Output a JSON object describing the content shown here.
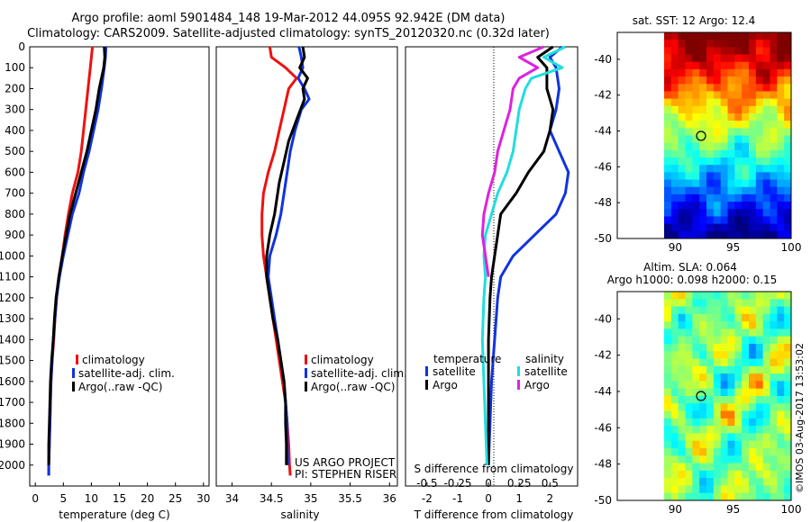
{
  "header": {
    "line1": "Argo profile: aoml 5901484_148 19-Mar-2012 44.095S 92.942E (DM data)",
    "line2": "Climatology: CARS2009. Satellite-adjusted climatology: synTS_20120320.nc (0.32d later)"
  },
  "sst_panel": {
    "title": "sat. SST: 12 Argo: 12.4"
  },
  "sla_panel": {
    "title1": "Altim. SLA: 0.064",
    "title2": "Argo h1000: 0.098 h2000: 0.15"
  },
  "credit": "©IMOS 03-Aug-2017 13:53:02",
  "project_note": {
    "line1": "US ARGO PROJECT",
    "line2": "PI: STEPHEN RISER"
  },
  "colors": {
    "climatology": "#ee1111",
    "satellite": "#1133dd",
    "argo": "#000000",
    "s_satellite": "#22dddd",
    "s_argo": "#dd22dd"
  },
  "legend": {
    "climatology": "climatology",
    "satellite_adj": "satellite-adj. clim.",
    "argo_raw": "Argo(..raw -QC)"
  },
  "diff_legend": {
    "temperature": "temperature",
    "salinity": "salinity",
    "satellite": "satellite",
    "argo": "Argo"
  },
  "chart_data": [
    {
      "type": "line",
      "xlabel": "temperature (deg C)",
      "ylabel": "",
      "xlim": [
        -1,
        31
      ],
      "ylim": [
        2100,
        0
      ],
      "xticks": [
        0,
        5,
        10,
        15,
        20,
        25,
        30
      ],
      "yticks": [
        0,
        100,
        200,
        300,
        400,
        500,
        600,
        700,
        800,
        900,
        1000,
        1100,
        1200,
        1300,
        1400,
        1500,
        1600,
        1700,
        1800,
        1900,
        2000
      ],
      "series": [
        {
          "name": "climatology",
          "color": "#ee1111",
          "points": [
            [
              10.2,
              0
            ],
            [
              10.0,
              50
            ],
            [
              9.8,
              100
            ],
            [
              9.4,
              200
            ],
            [
              9.0,
              300
            ],
            [
              8.6,
              400
            ],
            [
              8.2,
              500
            ],
            [
              7.6,
              600
            ],
            [
              6.6,
              700
            ],
            [
              5.9,
              800
            ],
            [
              5.3,
              900
            ],
            [
              4.8,
              1000
            ],
            [
              4.2,
              1100
            ],
            [
              3.8,
              1200
            ],
            [
              3.5,
              1300
            ],
            [
              3.3,
              1400
            ],
            [
              3.0,
              1500
            ],
            [
              2.8,
              1600
            ],
            [
              2.7,
              1700
            ],
            [
              2.6,
              1800
            ],
            [
              2.5,
              1900
            ],
            [
              2.4,
              2000
            ],
            [
              2.4,
              2050
            ]
          ]
        },
        {
          "name": "satellite-adj. clim.",
          "color": "#1133dd",
          "points": [
            [
              12.6,
              0
            ],
            [
              12.5,
              50
            ],
            [
              12.3,
              100
            ],
            [
              11.8,
              200
            ],
            [
              11.2,
              300
            ],
            [
              10.4,
              400
            ],
            [
              9.6,
              500
            ],
            [
              8.6,
              600
            ],
            [
              7.8,
              700
            ],
            [
              6.6,
              800
            ],
            [
              5.8,
              900
            ],
            [
              5.0,
              1000
            ],
            [
              4.3,
              1100
            ],
            [
              3.8,
              1200
            ],
            [
              3.5,
              1300
            ],
            [
              3.2,
              1400
            ],
            [
              3.0,
              1500
            ],
            [
              2.8,
              1600
            ],
            [
              2.7,
              1700
            ],
            [
              2.6,
              1800
            ],
            [
              2.5,
              1900
            ],
            [
              2.4,
              2000
            ],
            [
              2.4,
              2050
            ]
          ]
        },
        {
          "name": "Argo(..raw -QC)",
          "color": "#000000",
          "points": [
            [
              12.3,
              0
            ],
            [
              12.4,
              50
            ],
            [
              12.2,
              100
            ],
            [
              11.4,
              200
            ],
            [
              10.8,
              300
            ],
            [
              10.0,
              400
            ],
            [
              9.2,
              500
            ],
            [
              8.2,
              600
            ],
            [
              7.2,
              700
            ],
            [
              6.2,
              800
            ],
            [
              5.5,
              900
            ],
            [
              4.8,
              1000
            ],
            [
              4.2,
              1100
            ],
            [
              3.7,
              1200
            ],
            [
              3.4,
              1300
            ],
            [
              3.2,
              1400
            ],
            [
              2.9,
              1500
            ],
            [
              2.7,
              1600
            ],
            [
              2.6,
              1700
            ],
            [
              2.5,
              1800
            ],
            [
              2.4,
              1900
            ],
            [
              2.4,
              2000
            ]
          ]
        }
      ]
    },
    {
      "type": "line",
      "xlabel": "salinity",
      "ylabel": "",
      "xlim": [
        33.8,
        36.1
      ],
      "ylim": [
        2100,
        0
      ],
      "xticks": [
        34,
        34.5,
        35,
        35.5,
        36
      ],
      "series": [
        {
          "name": "climatology",
          "color": "#ee1111",
          "points": [
            [
              34.48,
              0
            ],
            [
              34.5,
              50
            ],
            [
              34.68,
              100
            ],
            [
              34.82,
              150
            ],
            [
              34.72,
              200
            ],
            [
              34.66,
              300
            ],
            [
              34.6,
              400
            ],
            [
              34.54,
              500
            ],
            [
              34.46,
              600
            ],
            [
              34.4,
              700
            ],
            [
              34.38,
              800
            ],
            [
              34.38,
              900
            ],
            [
              34.4,
              1000
            ],
            [
              34.44,
              1100
            ],
            [
              34.48,
              1200
            ],
            [
              34.52,
              1300
            ],
            [
              34.56,
              1400
            ],
            [
              34.6,
              1500
            ],
            [
              34.64,
              1600
            ],
            [
              34.68,
              1700
            ],
            [
              34.7,
              1800
            ],
            [
              34.72,
              1900
            ],
            [
              34.73,
              2000
            ],
            [
              34.74,
              2050
            ]
          ]
        },
        {
          "name": "satellite-adj. clim.",
          "color": "#1133dd",
          "points": [
            [
              34.85,
              0
            ],
            [
              34.88,
              50
            ],
            [
              34.9,
              100
            ],
            [
              34.84,
              150
            ],
            [
              34.92,
              200
            ],
            [
              34.98,
              250
            ],
            [
              34.88,
              300
            ],
            [
              34.8,
              400
            ],
            [
              34.74,
              500
            ],
            [
              34.7,
              600
            ],
            [
              34.66,
              700
            ],
            [
              34.62,
              800
            ],
            [
              34.56,
              900
            ],
            [
              34.48,
              1000
            ],
            [
              34.46,
              1100
            ],
            [
              34.5,
              1200
            ],
            [
              34.54,
              1300
            ],
            [
              34.58,
              1400
            ],
            [
              34.62,
              1500
            ],
            [
              34.66,
              1600
            ],
            [
              34.68,
              1700
            ],
            [
              34.7,
              1800
            ],
            [
              34.7,
              1900
            ],
            [
              34.71,
              2000
            ]
          ]
        },
        {
          "name": "Argo(..raw -QC)",
          "color": "#000000",
          "points": [
            [
              34.9,
              0
            ],
            [
              34.92,
              50
            ],
            [
              34.86,
              100
            ],
            [
              34.96,
              150
            ],
            [
              34.9,
              200
            ],
            [
              34.92,
              250
            ],
            [
              34.82,
              350
            ],
            [
              34.72,
              450
            ],
            [
              34.66,
              550
            ],
            [
              34.6,
              650
            ],
            [
              34.54,
              800
            ],
            [
              34.48,
              900
            ],
            [
              34.44,
              1000
            ],
            [
              34.44,
              1100
            ],
            [
              34.48,
              1200
            ],
            [
              34.52,
              1300
            ],
            [
              34.58,
              1400
            ],
            [
              34.62,
              1500
            ],
            [
              34.66,
              1600
            ],
            [
              34.68,
              1700
            ],
            [
              34.68,
              1800
            ],
            [
              34.69,
              1900
            ],
            [
              34.69,
              2000
            ]
          ]
        }
      ]
    },
    {
      "type": "line",
      "xlabel": "T difference from climatology",
      "ylabel": "",
      "top_label": "S difference from climatology",
      "xlim": [
        -2.7,
        2.9
      ],
      "ylim": [
        2100,
        0
      ],
      "xticks": [
        -2,
        -1,
        0,
        1,
        2
      ],
      "s_ticks": [
        "-0.5",
        "-0.25",
        "0",
        "0.25",
        "0.5"
      ],
      "series": [
        {
          "name": "temperature satellite",
          "color": "#1133dd",
          "points": [
            [
              2.4,
              0
            ],
            [
              2.0,
              50
            ],
            [
              2.2,
              100
            ],
            [
              2.3,
              200
            ],
            [
              2.2,
              300
            ],
            [
              2.0,
              400
            ],
            [
              2.3,
              500
            ],
            [
              2.6,
              600
            ],
            [
              2.5,
              700
            ],
            [
              2.2,
              800
            ],
            [
              1.5,
              900
            ],
            [
              0.8,
              1000
            ],
            [
              0.4,
              1100
            ],
            [
              0.3,
              1200
            ],
            [
              0.2,
              1400
            ],
            [
              0.1,
              1600
            ],
            [
              0.05,
              1800
            ],
            [
              0.0,
              2000
            ]
          ]
        },
        {
          "name": "temperature Argo",
          "color": "#000000",
          "points": [
            [
              2.1,
              0
            ],
            [
              1.6,
              50
            ],
            [
              1.9,
              100
            ],
            [
              1.9,
              200
            ],
            [
              2.1,
              300
            ],
            [
              2.0,
              400
            ],
            [
              1.8,
              500
            ],
            [
              1.3,
              600
            ],
            [
              0.9,
              700
            ],
            [
              0.4,
              800
            ],
            [
              0.3,
              900
            ],
            [
              0.2,
              1000
            ],
            [
              0.1,
              1100
            ],
            [
              0.05,
              1200
            ],
            [
              0.0,
              1400
            ],
            [
              0.0,
              1700
            ],
            [
              0.0,
              2000
            ]
          ]
        },
        {
          "name": "salinity satellite",
          "color": "#22dddd",
          "points": [
            [
              2.5,
              0
            ],
            [
              1.8,
              50
            ],
            [
              2.4,
              100
            ],
            [
              1.4,
              150
            ],
            [
              1.2,
              200
            ],
            [
              1.0,
              300
            ],
            [
              0.9,
              400
            ],
            [
              0.8,
              500
            ],
            [
              0.6,
              600
            ],
            [
              0.3,
              700
            ],
            [
              0.1,
              800
            ],
            [
              -0.1,
              900
            ],
            [
              -0.15,
              1000
            ],
            [
              -0.1,
              1100
            ],
            [
              -0.15,
              1200
            ],
            [
              -0.2,
              1400
            ],
            [
              -0.15,
              1600
            ],
            [
              -0.1,
              1800
            ],
            [
              -0.05,
              2000
            ]
          ]
        },
        {
          "name": "salinity Argo",
          "color": "#dd22dd",
          "points": [
            [
              1.8,
              0
            ],
            [
              1.0,
              50
            ],
            [
              1.6,
              100
            ],
            [
              1.0,
              150
            ],
            [
              0.8,
              200
            ],
            [
              0.7,
              300
            ],
            [
              0.5,
              400
            ],
            [
              0.3,
              500
            ],
            [
              0.2,
              600
            ],
            [
              0.0,
              700
            ],
            [
              -0.15,
              800
            ],
            [
              -0.2,
              900
            ],
            [
              -0.1,
              1000
            ],
            [
              0.0,
              1100
            ]
          ]
        }
      ]
    }
  ],
  "sst_map": {
    "type": "heatmap",
    "xticks": [
      90,
      95,
      100
    ],
    "yticks": [
      -40,
      -42,
      -44,
      -46,
      -48,
      -50
    ],
    "xlim": [
      85,
      100
    ],
    "ylim": [
      -50,
      -38.5
    ],
    "float_position": [
      92.942,
      -44.095
    ]
  },
  "sla_map": {
    "type": "heatmap",
    "xticks": [
      90,
      95,
      100
    ],
    "yticks": [
      -40,
      -42,
      -44,
      -46,
      -48,
      -50
    ],
    "xlim": [
      85,
      100
    ],
    "ylim": [
      -50,
      -38.5
    ],
    "float_position": [
      92.942,
      -44.095
    ]
  }
}
